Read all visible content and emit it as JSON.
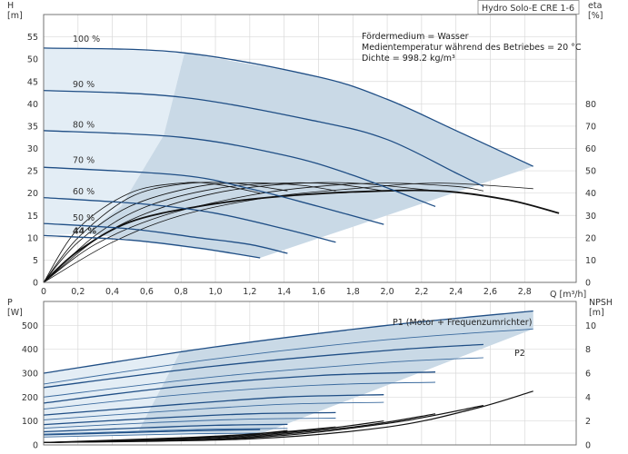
{
  "colors": {
    "area_fill": "#c9d9e6",
    "area_fill_light": "#e3edf5",
    "curve_blue": "#1f4e85",
    "curve_black": "#111111",
    "grid": "#d9d9d9",
    "frame": "#666666"
  },
  "chart_data": [
    {
      "type": "line",
      "name": "qh-eta",
      "title": "Hydro Solo-E CRE 1-6",
      "xlabel": "Q [m³/h]",
      "ylabel_left": "H\n[m]",
      "ylabel_right": "eta\n[%]",
      "xlim": [
        0,
        3.1
      ],
      "ylim_left": [
        0,
        60
      ],
      "ylim_right": [
        0,
        120
      ],
      "x_ticks": [
        "0",
        "0,2",
        "0,4",
        "0,6",
        "0,8",
        "1,0",
        "1,2",
        "1,4",
        "1,6",
        "1,8",
        "2,0",
        "2,2",
        "2,4",
        "2,6",
        "2,8"
      ],
      "y_ticks_left": [
        "0",
        "5",
        "10",
        "15",
        "20",
        "25",
        "30",
        "35",
        "40",
        "45",
        "50",
        "55"
      ],
      "y_ticks_right": [
        "0",
        "10",
        "20",
        "30",
        "40",
        "50",
        "60",
        "70",
        "80"
      ],
      "grid": true,
      "info_lines": [
        "Fördermedium = Wasser",
        "Medientemperatur während des Betriebes = 20 °C",
        "Dichte = 998.2 kg/m³"
      ],
      "speed_labels": [
        {
          "label": "100 %",
          "h": 53.5
        },
        {
          "label": "90 %",
          "h": 43.3
        },
        {
          "label": "80 %",
          "h": 34.3
        },
        {
          "label": "70 %",
          "h": 26.3
        },
        {
          "label": "60 %",
          "h": 19.3
        },
        {
          "label": "50 %",
          "h": 13.4
        },
        {
          "label": "44 %",
          "h": 10.5
        }
      ],
      "head_curves": [
        {
          "speed": "100 %",
          "q": [
            0,
            0.8,
            1.6,
            2.0,
            2.4,
            2.85
          ],
          "h": [
            52.5,
            51.5,
            46,
            41,
            34,
            26
          ]
        },
        {
          "speed": "90 %",
          "q": [
            0,
            0.8,
            1.6,
            2.0,
            2.4,
            2.56
          ],
          "h": [
            43,
            41.5,
            36,
            32,
            24.5,
            21.5
          ]
        },
        {
          "speed": "80 %",
          "q": [
            0,
            0.8,
            1.4,
            1.8,
            2.28
          ],
          "h": [
            34,
            32.5,
            28.5,
            24,
            17
          ]
        },
        {
          "speed": "70 %",
          "q": [
            0,
            0.8,
            1.2,
            1.6,
            1.98
          ],
          "h": [
            25.8,
            24,
            21,
            17,
            13
          ]
        },
        {
          "speed": "60 %",
          "q": [
            0,
            0.6,
            1.0,
            1.4,
            1.7
          ],
          "h": [
            19,
            17.5,
            15.5,
            12,
            9
          ]
        },
        {
          "speed": "50 %",
          "q": [
            0,
            0.5,
            0.9,
            1.2,
            1.42
          ],
          "h": [
            13.2,
            12,
            10,
            8.5,
            6.5
          ]
        },
        {
          "speed": "44 %",
          "q": [
            0,
            0.5,
            0.9,
            1.1,
            1.26
          ],
          "h": [
            10.5,
            9.5,
            7.7,
            6.5,
            5.5
          ]
        }
      ],
      "efficiency_curves": [
        {
          "q": [
            0,
            0.4,
            0.8,
            1.3,
            1.8,
            2.3,
            2.85
          ],
          "eta": [
            0,
            18,
            30,
            38,
            42,
            44.5,
            42
          ]
        },
        {
          "q": [
            0,
            0.3,
            0.7,
            1.2,
            1.6,
            2.0,
            2.4,
            2.56
          ],
          "eta": [
            0,
            17,
            30,
            39,
            43,
            44.5,
            43,
            41
          ]
        },
        {
          "q": [
            0,
            0.3,
            0.6,
            1.0,
            1.4,
            1.8,
            2.28
          ],
          "eta": [
            0,
            19,
            31,
            40,
            44,
            44.5,
            41
          ]
        },
        {
          "q": [
            0,
            0.3,
            0.6,
            1.0,
            1.4,
            1.7,
            1.98
          ],
          "eta": [
            0,
            21,
            34,
            42,
            44.5,
            44,
            41
          ]
        },
        {
          "q": [
            0,
            0.2,
            0.5,
            0.9,
            1.2,
            1.5,
            1.7
          ],
          "eta": [
            0,
            18,
            34,
            43,
            44.5,
            43.5,
            41
          ]
        },
        {
          "q": [
            0,
            0.2,
            0.5,
            0.8,
            1.1,
            1.42
          ],
          "eta": [
            0,
            20,
            38,
            44,
            44.5,
            41
          ]
        },
        {
          "q": [
            0,
            0.2,
            0.5,
            0.8,
            1.0,
            1.26
          ],
          "eta": [
            0,
            24,
            40,
            44.5,
            44,
            40
          ]
        }
      ],
      "bold_efficiency": {
        "q": [
          0,
          0.2,
          0.5,
          0.9,
          1.3,
          1.8,
          2.3,
          2.7,
          3.0
        ],
        "eta": [
          0,
          14,
          27,
          34,
          38,
          40.5,
          41,
          37,
          31
        ]
      }
    },
    {
      "type": "line",
      "name": "power-npsh",
      "xlabel": "Q [m³/h]",
      "ylabel_left": "P\n[W]",
      "ylabel_right": "NPSH\n[m]",
      "xlim": [
        0,
        3.1
      ],
      "ylim_left": [
        0,
        600
      ],
      "ylim_right": [
        0,
        12
      ],
      "y_ticks_left": [
        "0",
        "100",
        "200",
        "300",
        "400",
        "500"
      ],
      "y_ticks_right": [
        "0",
        "2",
        "4",
        "6",
        "8",
        "10"
      ],
      "grid": true,
      "series_labels": {
        "p1": "P1 (Motor + Frequenzumrichter)",
        "p2": "P2"
      },
      "p1_curves": [
        {
          "q": [
            0,
            1.0,
            2.0,
            2.85
          ],
          "p": [
            300,
            410,
            500,
            560
          ]
        },
        {
          "q": [
            0,
            1.0,
            2.0,
            2.56
          ],
          "p": [
            240,
            330,
            395,
            420
          ]
        },
        {
          "q": [
            0,
            0.8,
            1.6,
            2.28
          ],
          "p": [
            175,
            245,
            290,
            305
          ]
        },
        {
          "q": [
            0,
            0.8,
            1.4,
            1.98
          ],
          "p": [
            125,
            170,
            200,
            210
          ]
        },
        {
          "q": [
            0,
            0.6,
            1.2,
            1.7
          ],
          "p": [
            85,
            110,
            130,
            135
          ]
        },
        {
          "q": [
            0,
            0.6,
            1.0,
            1.42
          ],
          "p": [
            55,
            72,
            82,
            86
          ]
        },
        {
          "q": [
            0,
            0.5,
            0.9,
            1.26
          ],
          "p": [
            42,
            52,
            60,
            64
          ]
        }
      ],
      "p2_curves": [
        {
          "q": [
            0,
            1.0,
            2.0,
            2.85
          ],
          "p": [
            255,
            360,
            440,
            485
          ]
        },
        {
          "q": [
            0,
            1.0,
            2.0,
            2.56
          ],
          "p": [
            200,
            285,
            345,
            365
          ]
        },
        {
          "q": [
            0,
            0.8,
            1.6,
            2.28
          ],
          "p": [
            150,
            210,
            250,
            262
          ]
        },
        {
          "q": [
            0,
            0.8,
            1.4,
            1.98
          ],
          "p": [
            105,
            145,
            170,
            178
          ]
        },
        {
          "q": [
            0,
            0.6,
            1.2,
            1.7
          ],
          "p": [
            70,
            92,
            108,
            112
          ]
        },
        {
          "q": [
            0,
            0.6,
            1.0,
            1.42
          ],
          "p": [
            45,
            58,
            66,
            69
          ]
        },
        {
          "q": [
            0,
            0.5,
            0.9,
            1.26
          ],
          "p": [
            33,
            41,
            47,
            49
          ]
        }
      ],
      "npsh_curves": [
        {
          "q": [
            0,
            1.2,
            2.0,
            2.5,
            2.85
          ],
          "npsh": [
            0.2,
            0.5,
            1.5,
            3.0,
            4.5
          ]
        },
        {
          "q": [
            0,
            1.2,
            2.0,
            2.56
          ],
          "npsh": [
            0.2,
            0.6,
            1.8,
            3.3
          ]
        },
        {
          "q": [
            0,
            1.0,
            1.8,
            2.28
          ],
          "npsh": [
            0.2,
            0.5,
            1.5,
            2.6
          ]
        },
        {
          "q": [
            0,
            1.0,
            1.6,
            1.98
          ],
          "npsh": [
            0.2,
            0.6,
            1.3,
            2.0
          ]
        },
        {
          "q": [
            0,
            0.8,
            1.4,
            1.7
          ],
          "npsh": [
            0.2,
            0.5,
            1.1,
            1.5
          ]
        },
        {
          "q": [
            0,
            0.8,
            1.2,
            1.42
          ],
          "npsh": [
            0.2,
            0.6,
            0.9,
            1.2
          ]
        },
        {
          "q": [
            0,
            0.6,
            1.0,
            1.26
          ],
          "npsh": [
            0.2,
            0.4,
            0.7,
            0.9
          ]
        }
      ]
    }
  ]
}
